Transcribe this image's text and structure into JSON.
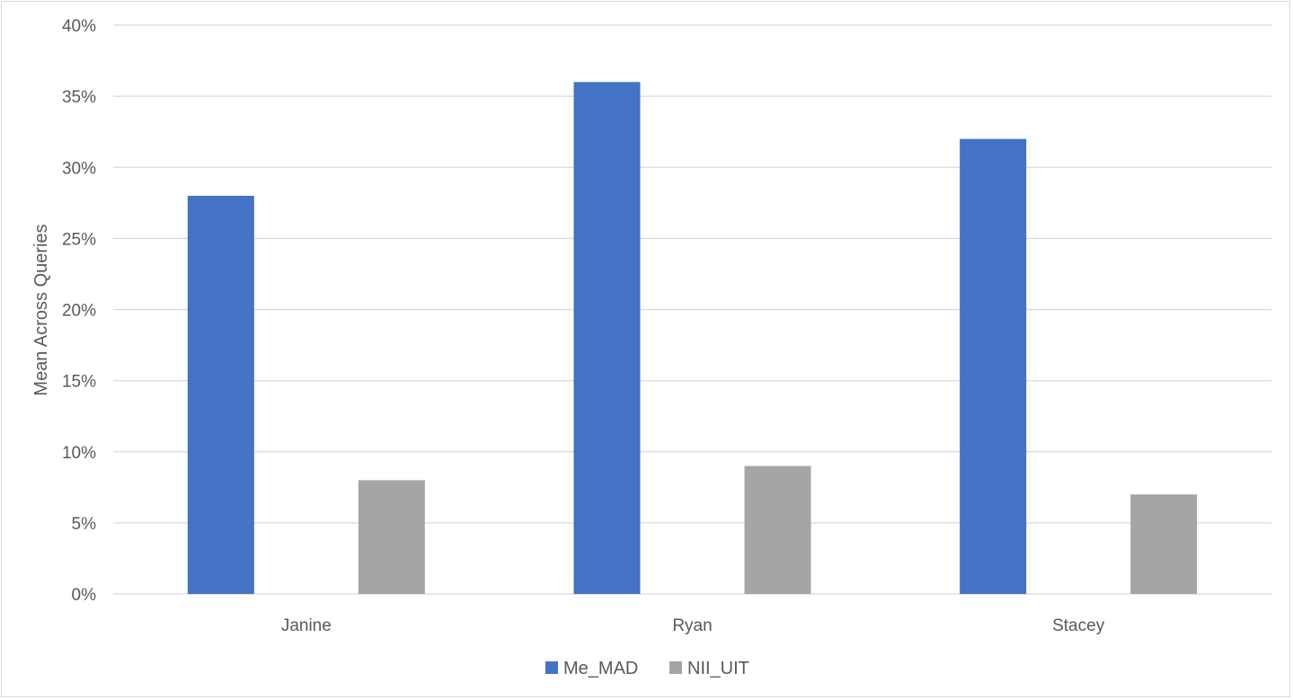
{
  "chart_data": {
    "type": "bar",
    "title": "",
    "xlabel": "",
    "ylabel": "Mean Across Queries",
    "categories": [
      "Janine",
      "Ryan",
      "Stacey"
    ],
    "series": [
      {
        "name": "Me_MAD",
        "color": "#4472c4",
        "values": [
          0.28,
          0.36,
          0.32
        ]
      },
      {
        "name": "NII_UIT",
        "color": "#a5a5a5",
        "values": [
          0.08,
          0.09,
          0.07
        ]
      }
    ],
    "ylim": [
      0,
      0.4
    ],
    "yticks": [
      0,
      0.05,
      0.1,
      0.15,
      0.2,
      0.25,
      0.3,
      0.35,
      0.4
    ],
    "ytick_labels": [
      "0%",
      "5%",
      "10%",
      "15%",
      "20%",
      "25%",
      "30%",
      "35%",
      "40%"
    ],
    "grid": true,
    "legend_position": "bottom"
  }
}
